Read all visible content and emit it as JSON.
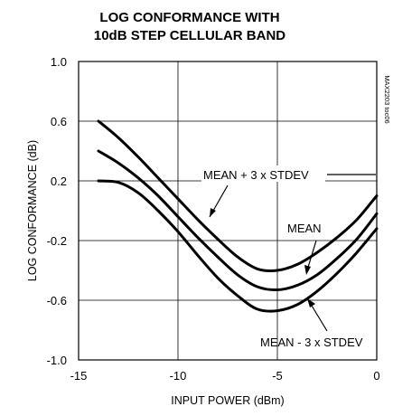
{
  "chart_data": {
    "type": "line",
    "title": [
      "LOG CONFORMANCE WITH",
      "10dB STEP CELLULAR BAND"
    ],
    "xlabel": "INPUT POWER (dBm)",
    "ylabel": "LOG CONFORMANCE (dB)",
    "xlim": [
      -15,
      0
    ],
    "ylim": [
      -1.0,
      1.0
    ],
    "xticks": [
      -15,
      -10,
      -5,
      0
    ],
    "xtick_labels": [
      "-15",
      "-10",
      "-5",
      "0"
    ],
    "yticks": [
      1.0,
      0.6,
      0.2,
      -0.2,
      -0.6,
      -1.0
    ],
    "ytick_labels": [
      "1.0",
      "0.6",
      "0.2",
      "-0.2",
      "-0.6",
      "-1.0"
    ],
    "grid": true,
    "side_code": "MAX2203 toc06",
    "series": [
      {
        "name": "MEAN + 3 x STDEV",
        "x": [
          -14,
          -13,
          -12,
          -11,
          -10,
          -9,
          -8,
          -7,
          -6,
          -5,
          -4,
          -3,
          -2,
          -1,
          0
        ],
        "y": [
          0.6,
          0.49,
          0.36,
          0.22,
          0.08,
          -0.06,
          -0.19,
          -0.31,
          -0.39,
          -0.4,
          -0.36,
          -0.28,
          -0.18,
          -0.06,
          0.1
        ]
      },
      {
        "name": "MEAN",
        "x": [
          -14,
          -13,
          -12,
          -11,
          -10,
          -9,
          -8,
          -7,
          -6,
          -5,
          -4,
          -3,
          -2,
          -1,
          0
        ],
        "y": [
          0.4,
          0.32,
          0.22,
          0.1,
          -0.04,
          -0.18,
          -0.31,
          -0.43,
          -0.51,
          -0.53,
          -0.5,
          -0.43,
          -0.32,
          -0.19,
          -0.02
        ]
      },
      {
        "name": "MEAN - 3 x STDEV",
        "x": [
          -14,
          -13,
          -12,
          -11,
          -10,
          -9,
          -8,
          -7,
          -6,
          -5,
          -4,
          -3,
          -2,
          -1,
          0
        ],
        "y": [
          0.2,
          0.19,
          0.12,
          0.0,
          -0.14,
          -0.3,
          -0.45,
          -0.57,
          -0.66,
          -0.67,
          -0.63,
          -0.54,
          -0.42,
          -0.28,
          -0.12
        ]
      }
    ],
    "annotations": [
      "MEAN + 3 x STDEV",
      "MEAN",
      "MEAN - 3 x STDEV"
    ]
  }
}
